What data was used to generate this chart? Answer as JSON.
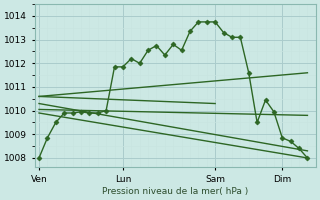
{
  "background_color": "#cce8e4",
  "grid_major_color": "#aacccc",
  "grid_minor_color": "#c8e4e0",
  "line_color": "#2d6624",
  "marker": "D",
  "marker_size": 2.5,
  "line_width": 1.0,
  "xlabel_text": "Pression niveau de la mer( hPa )",
  "yticks": [
    1008,
    1009,
    1010,
    1011,
    1012,
    1013,
    1014
  ],
  "xtick_labels": [
    "Ven",
    "Lun",
    "Sam",
    "Dim"
  ],
  "xtick_positions": [
    0,
    10,
    21,
    29
  ],
  "vlines": [
    0,
    10,
    21,
    29
  ],
  "xlim": [
    -0.5,
    33
  ],
  "ylim": [
    1007.6,
    1014.5
  ],
  "main_series": {
    "x": [
      0,
      1,
      2,
      3,
      4,
      5,
      6,
      7,
      8,
      9,
      10,
      11,
      12,
      13,
      14,
      15,
      16,
      17,
      18,
      19,
      20,
      21,
      22,
      23,
      24,
      25,
      26,
      27,
      28,
      29,
      30,
      31,
      32
    ],
    "y": [
      1008.0,
      1008.85,
      1009.5,
      1009.9,
      1009.9,
      1009.95,
      1009.9,
      1009.9,
      1010.0,
      1011.85,
      1011.85,
      1012.2,
      1012.0,
      1012.55,
      1012.75,
      1012.35,
      1012.8,
      1012.55,
      1013.35,
      1013.75,
      1013.75,
      1013.75,
      1013.3,
      1013.1,
      1013.1,
      1011.6,
      1009.5,
      1010.45,
      1009.95,
      1008.85,
      1008.7,
      1008.4,
      1008.0
    ]
  },
  "straight_lines": [
    {
      "x": [
        0,
        32
      ],
      "y": [
        1010.6,
        1011.6
      ]
    },
    {
      "x": [
        0,
        32
      ],
      "y": [
        1010.05,
        1009.8
      ]
    },
    {
      "x": [
        0,
        32
      ],
      "y": [
        1010.3,
        1008.3
      ]
    },
    {
      "x": [
        0,
        21
      ],
      "y": [
        1010.6,
        1010.3
      ]
    },
    {
      "x": [
        0,
        32
      ],
      "y": [
        1009.9,
        1008.0
      ]
    }
  ]
}
